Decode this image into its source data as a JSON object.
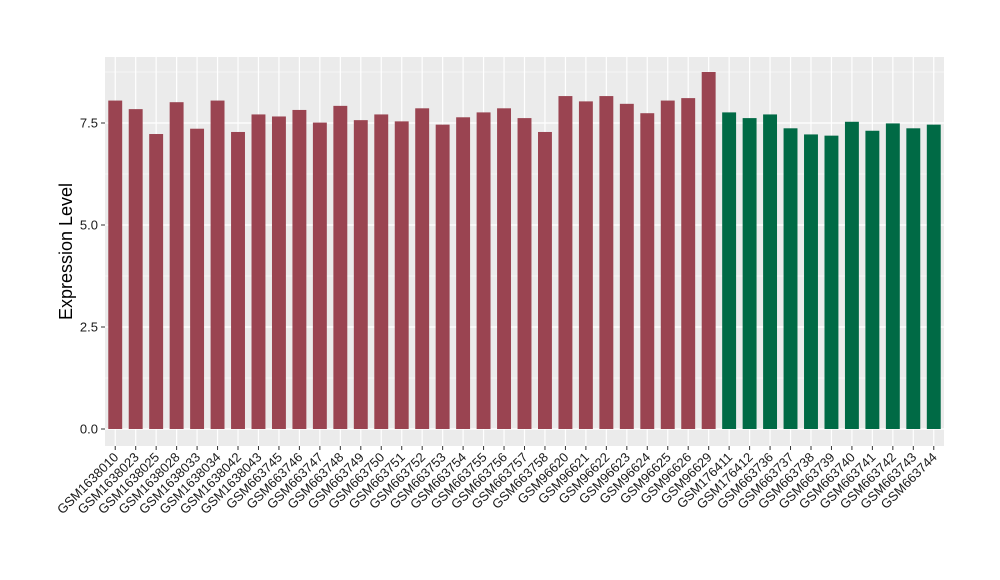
{
  "chart_data": {
    "type": "bar",
    "title": "",
    "xlabel": "",
    "ylabel": "Expression Level",
    "ylim": [
      0,
      8.9
    ],
    "yticks": [
      0.0,
      2.5,
      5.0,
      7.5
    ],
    "ytick_labels": [
      "0.0",
      "2.5",
      "5.0",
      "7.5"
    ],
    "grid": true,
    "legend": "none",
    "colors": {
      "group1": "#9a4451",
      "group2": "#006a45",
      "panel": "#ebebeb",
      "grid": "#ffffff"
    },
    "categories": [
      "GSM1638010",
      "GSM1638023",
      "GSM1638025",
      "GSM1638028",
      "GSM1638033",
      "GSM1638034",
      "GSM1638042",
      "GSM1638043",
      "GSM663745",
      "GSM663746",
      "GSM663747",
      "GSM663748",
      "GSM663749",
      "GSM663750",
      "GSM663751",
      "GSM663752",
      "GSM663753",
      "GSM663754",
      "GSM663755",
      "GSM663756",
      "GSM663757",
      "GSM663758",
      "GSM96620",
      "GSM96621",
      "GSM96622",
      "GSM96623",
      "GSM96624",
      "GSM96625",
      "GSM96626",
      "GSM96629",
      "GSM176411",
      "GSM176412",
      "GSM663736",
      "GSM663737",
      "GSM663738",
      "GSM663739",
      "GSM663740",
      "GSM663741",
      "GSM663742",
      "GSM663743",
      "GSM663744"
    ],
    "values": [
      8.05,
      7.84,
      7.23,
      8.01,
      7.36,
      8.05,
      7.28,
      7.71,
      7.66,
      7.82,
      7.51,
      7.92,
      7.57,
      7.71,
      7.54,
      7.86,
      7.46,
      7.64,
      7.76,
      7.86,
      7.62,
      7.28,
      8.16,
      8.03,
      8.16,
      7.97,
      7.74,
      8.05,
      8.11,
      8.75,
      7.76,
      7.62,
      7.71,
      7.37,
      7.22,
      7.19,
      7.53,
      7.31,
      7.49,
      7.37,
      7.46
    ],
    "groups": [
      1,
      1,
      1,
      1,
      1,
      1,
      1,
      1,
      1,
      1,
      1,
      1,
      1,
      1,
      1,
      1,
      1,
      1,
      1,
      1,
      1,
      1,
      1,
      1,
      1,
      1,
      1,
      1,
      1,
      1,
      2,
      2,
      2,
      2,
      2,
      2,
      2,
      2,
      2,
      2,
      2
    ]
  }
}
